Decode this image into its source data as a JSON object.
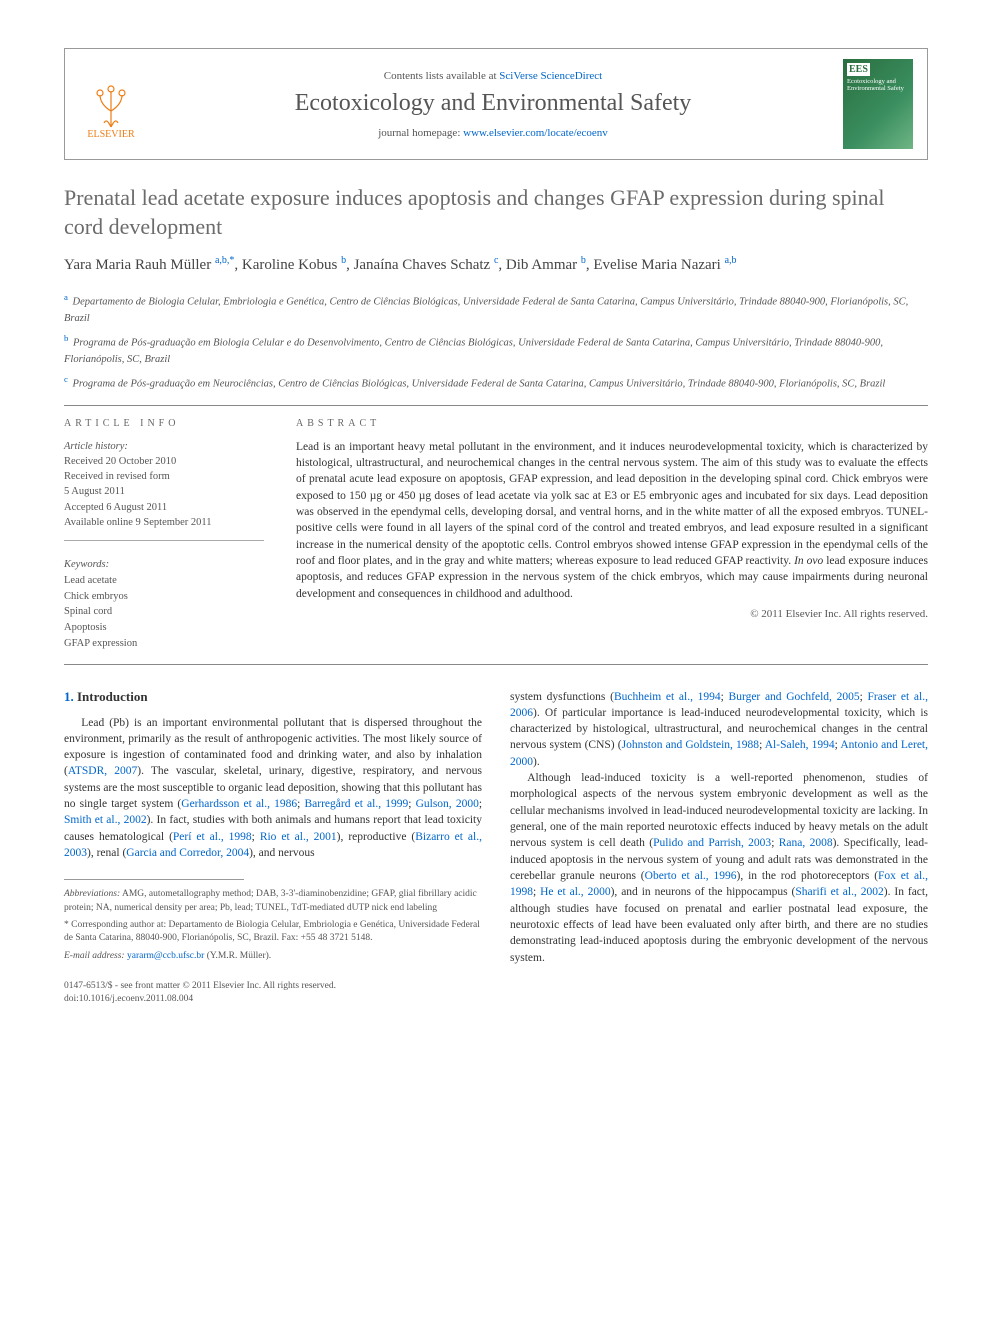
{
  "banner": {
    "publisher_name": "ELSEVIER",
    "contents_prefix": "Contents lists available at ",
    "contents_link": "SciVerse ScienceDirect",
    "journal_name": "Ecotoxicology and Environmental Safety",
    "homepage_prefix": "journal homepage: ",
    "homepage_link": "www.elsevier.com/locate/ecoenv",
    "cover_text_top": "Ecotoxicology and Environmental Safety",
    "cover_badge": "EES"
  },
  "article": {
    "title": "Prenatal lead acetate exposure induces apoptosis and changes GFAP expression during spinal cord development",
    "authors_html": "Yara Maria Rauh Müller <sup>a,b,*</sup>, Karoline Kobus <sup>b</sup>, Janaína Chaves Schatz <sup>c</sup>, Dib Ammar <sup>b</sup>, Evelise Maria Nazari <sup>a,b</sup>",
    "affiliations": [
      {
        "sup": "a",
        "text": "Departamento de Biologia Celular, Embriologia e Genética, Centro de Ciências Biológicas, Universidade Federal de Santa Catarina, Campus Universitário, Trindade 88040-900, Florianópolis, SC, Brazil"
      },
      {
        "sup": "b",
        "text": "Programa de Pós-graduação em Biologia Celular e do Desenvolvimento, Centro de Ciências Biológicas, Universidade Federal de Santa Catarina, Campus Universitário, Trindade 88040-900, Florianópolis, SC, Brazil"
      },
      {
        "sup": "c",
        "text": "Programa de Pós-graduação em Neurociências, Centro de Ciências Biológicas, Universidade Federal de Santa Catarina, Campus Universitário, Trindade 88040-900, Florianópolis, SC, Brazil"
      }
    ]
  },
  "info": {
    "header": "ARTICLE INFO",
    "history_label": "Article history:",
    "history": [
      "Received 20 October 2010",
      "Received in revised form",
      "5 August 2011",
      "Accepted 6 August 2011",
      "Available online 9 September 2011"
    ],
    "keywords_label": "Keywords:",
    "keywords": [
      "Lead acetate",
      "Chick embryos",
      "Spinal cord",
      "Apoptosis",
      "GFAP expression"
    ]
  },
  "abstract": {
    "header": "ABSTRACT",
    "text": "Lead is an important heavy metal pollutant in the environment, and it induces neurodevelopmental toxicity, which is characterized by histological, ultrastructural, and neurochemical changes in the central nervous system. The aim of this study was to evaluate the effects of prenatal acute lead exposure on apoptosis, GFAP expression, and lead deposition in the developing spinal cord. Chick embryos were exposed to 150 µg or 450 µg doses of lead acetate via yolk sac at E3 or E5 embryonic ages and incubated for six days. Lead deposition was observed in the ependymal cells, developing dorsal, and ventral horns, and in the white matter of all the exposed embryos. TUNEL-positive cells were found in all layers of the spinal cord of the control and treated embryos, and lead exposure resulted in a significant increase in the numerical density of the apoptotic cells. Control embryos showed intense GFAP expression in the ependymal cells of the roof and floor plates, and in the gray and white matters; whereas exposure to lead reduced GFAP reactivity. In ovo lead exposure induces apoptosis, and reduces GFAP expression in the nervous system of the chick embryos, which may cause impairments during neuronal development and consequences in childhood and adulthood.",
    "copyright": "© 2011 Elsevier Inc. All rights reserved."
  },
  "body": {
    "heading_num": "1.",
    "heading": "Introduction",
    "col1_paras": [
      "Lead (Pb) is an important environmental pollutant that is dispersed throughout the environment, primarily as the result of anthropogenic activities. The most likely source of exposure is ingestion of contaminated food and drinking water, and also by inhalation (<a>ATSDR, 2007</a>). The vascular, skeletal, urinary, digestive, respiratory, and nervous systems are the most susceptible to organic lead deposition, showing that this pollutant has no single target system (<a>Gerhardsson et al., 1986</a>; <a>Barregård et al., 1999</a>; <a>Gulson, 2000</a>; <a>Smith et al., 2002</a>). In fact, studies with both animals and humans report that lead toxicity causes hematological (<a>Perí et al., 1998</a>; <a>Rio et al., 2001</a>), reproductive (<a>Bizarro et al., 2003</a>), renal (<a>Garcia and Corredor, 2004</a>), and nervous"
    ],
    "col2_paras": [
      "system dysfunctions (<a>Buchheim et al., 1994</a>; <a>Burger and Gochfeld, 2005</a>; <a>Fraser et al., 2006</a>). Of particular importance is lead-induced neurodevelopmental toxicity, which is characterized by histological, ultrastructural, and neurochemical changes in the central nervous system (CNS) (<a>Johnston and Goldstein, 1988</a>; <a>Al-Saleh, 1994</a>; <a>Antonio and Leret, 2000</a>).",
      "Although lead-induced toxicity is a well-reported phenomenon, studies of morphological aspects of the nervous system embryonic development as well as the cellular mechanisms involved in lead-induced neurodevelopmental toxicity are lacking. In general, one of the main reported neurotoxic effects induced by heavy metals on the adult nervous system is cell death (<a>Pulido and Parrish, 2003</a>; <a>Rana, 2008</a>). Specifically, lead-induced apoptosis in the nervous system of young and adult rats was demonstrated in the cerebellar granule neurons (<a>Oberto et al., 1996</a>), in the rod photoreceptors (<a>Fox et al., 1998</a>; <a>He et al., 2000</a>), and in neurons of the hippocampus (<a>Sharifi et al., 2002</a>). In fact, although studies have focused on prenatal and earlier postnatal lead exposure, the neurotoxic effects of lead have been evaluated only after birth, and there are no studies demonstrating lead-induced apoptosis during the embryonic development of the nervous system."
    ]
  },
  "footnotes": {
    "abbrev_label": "Abbreviations:",
    "abbrev_text": " AMG, autometallography method; DAB, 3-3'-diaminobenzidine; GFAP, glial fibrillary acidic protein; NA, numerical density per area; Pb, lead; TUNEL, TdT-mediated dUTP nick end labeling",
    "corr_label": "* Corresponding author at:",
    "corr_text": " Departamento de Biologia Celular, Embriologia e Genética, Universidade Federal de Santa Catarina, 88040-900, Florianópolis, SC, Brazil. Fax: +55 48 3721 5148.",
    "email_label": "E-mail address:",
    "email": " yararm@ccb.ufsc.br ",
    "email_suffix": "(Y.M.R. Müller)."
  },
  "bottom": {
    "line1": "0147-6513/$ - see front matter © 2011 Elsevier Inc. All rights reserved.",
    "line2": "doi:10.1016/j.ecoenv.2011.08.004"
  },
  "colors": {
    "link": "#0066cc",
    "publisher_orange": "#ed7d14",
    "heading_gray": "#6b6b6b",
    "text": "#333333",
    "muted": "#555555",
    "cover_green_a": "#2a6e3f",
    "cover_green_b": "#6fb585"
  },
  "typography": {
    "body_pt": 11.5,
    "title_pt": 22,
    "journal_pt": 24,
    "abstract_pt": 11.5,
    "footnote_pt": 9.5
  }
}
